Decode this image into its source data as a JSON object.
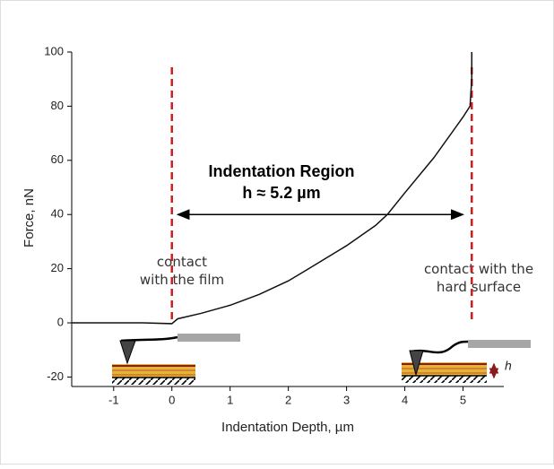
{
  "chart_data": {
    "type": "line",
    "xlabel": "Indentation Depth, µm",
    "ylabel": "Force, nN",
    "x": [
      -1.72,
      -1.0,
      -0.5,
      0,
      0.1,
      0.5,
      1.0,
      1.5,
      2.0,
      2.35,
      3.0,
      3.5,
      3.7,
      4.0,
      4.5,
      5.0,
      5.12,
      5.15,
      5.15
    ],
    "series": [
      {
        "color": "#111111",
        "values": [
          0,
          0,
          0,
          -0.3,
          1.5,
          3.5,
          6.5,
          10.5,
          15.5,
          20,
          28.5,
          36,
          40,
          48,
          61,
          76,
          80,
          90,
          100
        ]
      }
    ],
    "xlim": [
      -1.72,
      5.7
    ],
    "ylim": [
      -23.5,
      100
    ],
    "xticks": [
      -1,
      0,
      1,
      2,
      3,
      4,
      5
    ],
    "yticks": [
      -20,
      0,
      20,
      40,
      60,
      80,
      100
    ],
    "vlines": {
      "color": "#cc1f1f",
      "x": [
        0,
        5.15
      ]
    },
    "arrow": {
      "x": [
        0.1,
        5.0
      ],
      "y": 40
    },
    "region_title": "Indentation Region",
    "region_value": "h ≈ 5.2 µm",
    "left_note": [
      "contact",
      "with the film"
    ],
    "right_note": [
      "contact with the",
      "hard surface"
    ],
    "thickness_label": "h"
  }
}
